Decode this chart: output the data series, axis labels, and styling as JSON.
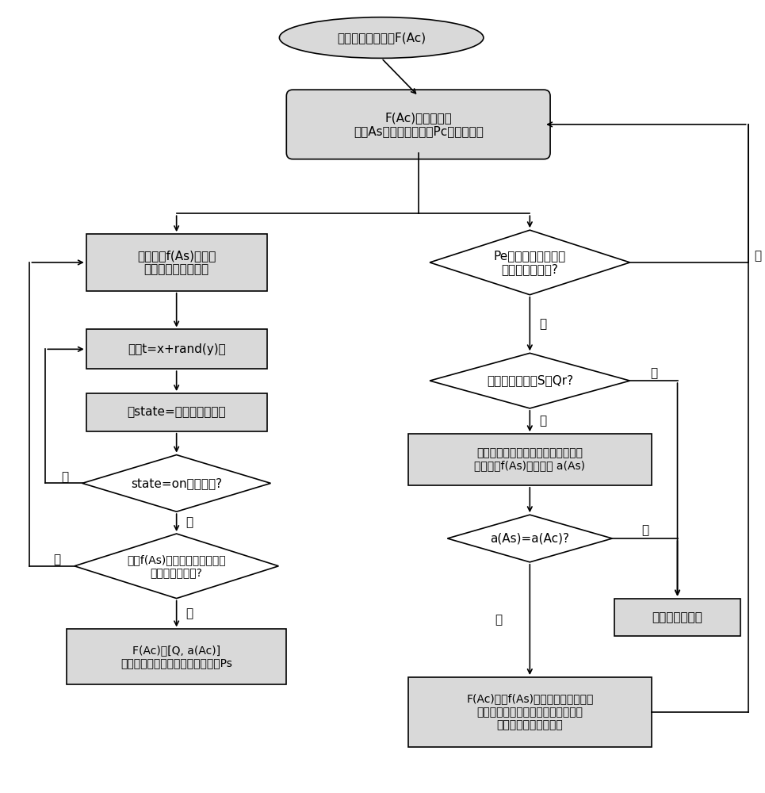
{
  "bg_color": "#ffffff",
  "box_fill": "#d9d9d9",
  "box_edge": "#000000",
  "text_color": "#000000",
  "oval_text": "启动第二服务引擎F(Ac)",
  "b1_text": "F(Ac)建立客户端\n应用As的数据接收端口Pc的监听服务",
  "lb1_text": "清空特征f(As)和第一\n网路设备的网络地址",
  "lb2_text": "睡眠t=x+rand(y)秒",
  "lb3_text": "令state=局域网连接状态",
  "d1_text": "state=on是否为真?",
  "d2_text": "特征f(As)和第一网路设备的网\n络地址是否为空?",
  "lb4_text": "F(Ac)将[Q, a(Ac)]\n送达至服务器端应用数据接收端口Ps",
  "rd1_text": "Pe收到服务器端应用\n发来的指令数据?",
  "rd2_text": "第一标识字段为S或Qr?",
  "rb1_text": "获取指令数据中的与服务器端应用相\n关的特征f(As)和授权码 a(As)",
  "rd3_text": "a(As)=a(Ac)?",
  "rb2_text": "丢弃该指令数据",
  "rb3_text": "F(Ac)获取f(As)和第一网络设备的网\n络地址，建立与第一网络设备上的服\n务器端应用之间的连接",
  "yes_text": "是",
  "no_text": "否"
}
